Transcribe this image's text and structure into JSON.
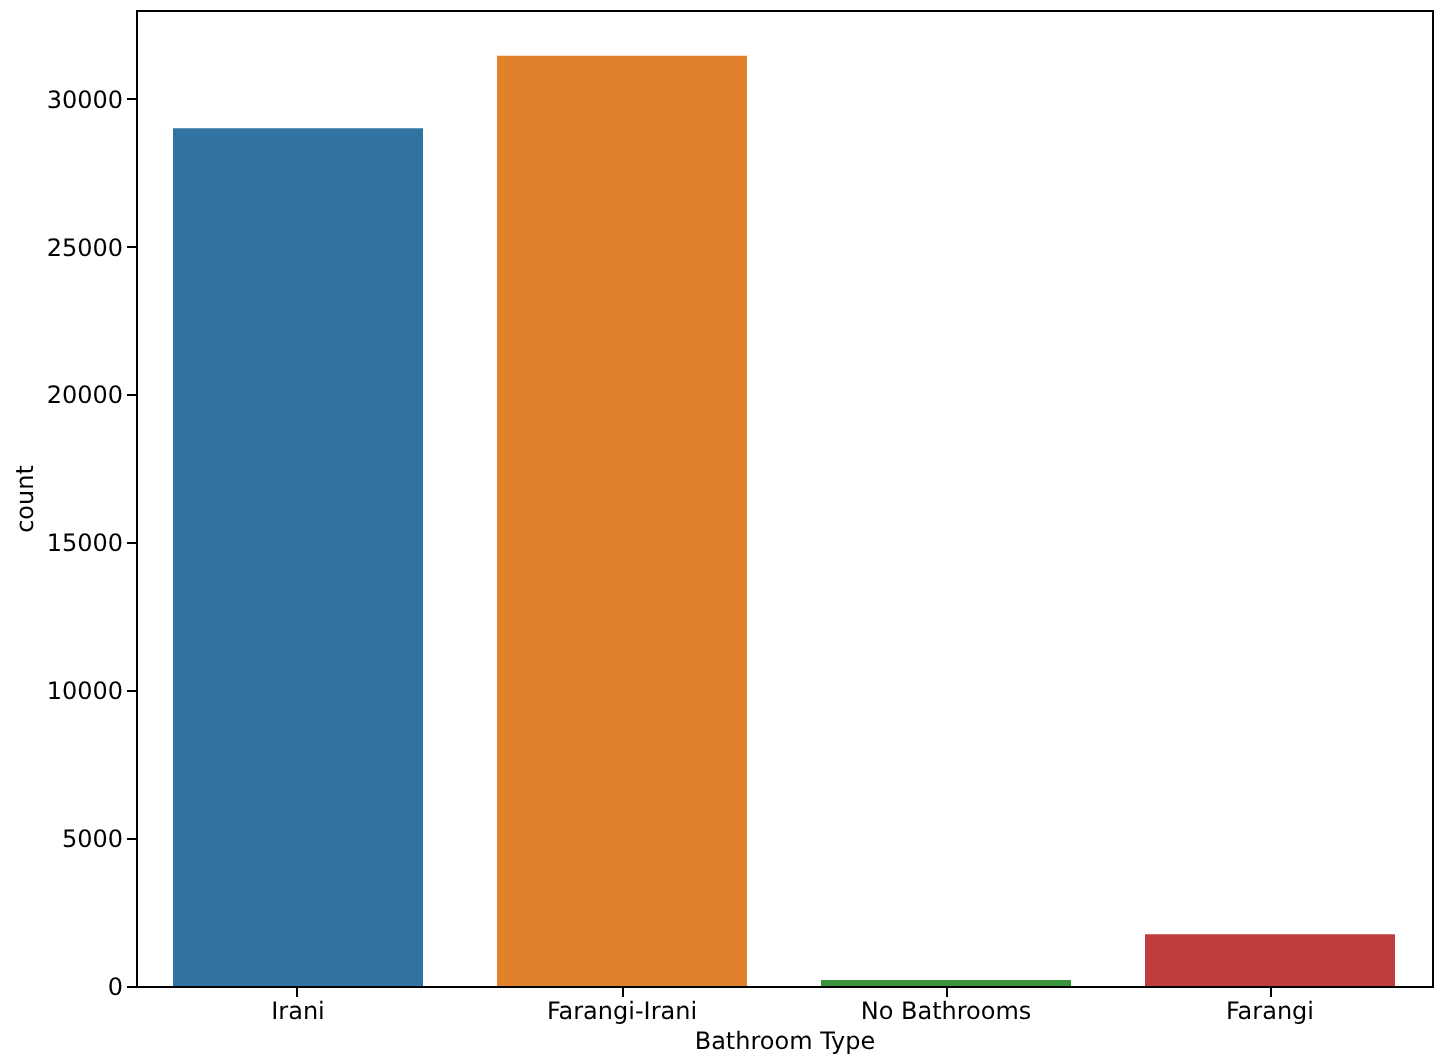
{
  "chart_data": {
    "type": "bar",
    "xlabel": "Bathroom Type",
    "ylabel": "count",
    "categories": [
      "Irani",
      "Farangi-Irani",
      "No Bathrooms",
      "Farangi"
    ],
    "values": [
      29000,
      31450,
      200,
      1750
    ],
    "colors": [
      "#3274a1",
      "#e1812c",
      "#3a923a",
      "#c03d3e"
    ],
    "ylim": [
      0,
      33000
    ],
    "yticks": [
      0,
      5000,
      10000,
      15000,
      20000,
      25000,
      30000
    ],
    "grid": false
  }
}
